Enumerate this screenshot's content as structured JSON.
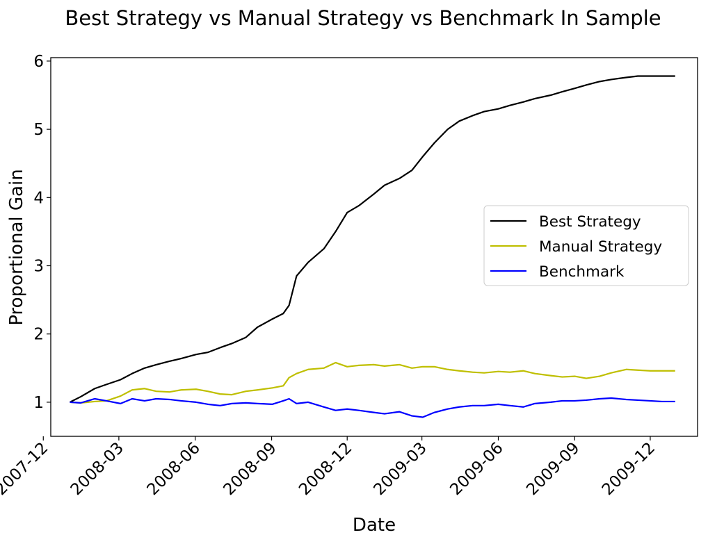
{
  "chart_data": {
    "type": "line",
    "title": "Best Strategy vs Manual Strategy vs Benchmark In Sample",
    "xlabel": "Date",
    "ylabel": "Proportional Gain",
    "x_ticks": [
      "2007-12",
      "2008-03",
      "2008-06",
      "2008-09",
      "2008-12",
      "2009-03",
      "2009-06",
      "2009-09",
      "2009-12"
    ],
    "xlim": [
      "2007-12-10",
      "2010-01-27"
    ],
    "y_ticks": [
      1,
      2,
      3,
      4,
      5,
      6
    ],
    "ylim": [
      0.5,
      6.05
    ],
    "grid": false,
    "legend_position": "center-right",
    "x": [
      "2008-01-02",
      "2008-01-15",
      "2008-02-01",
      "2008-02-15",
      "2008-03-03",
      "2008-03-17",
      "2008-04-01",
      "2008-04-15",
      "2008-05-01",
      "2008-05-15",
      "2008-06-02",
      "2008-06-16",
      "2008-07-01",
      "2008-07-15",
      "2008-08-01",
      "2008-08-15",
      "2008-09-02",
      "2008-09-15",
      "2008-09-22",
      "2008-10-01",
      "2008-10-15",
      "2008-11-03",
      "2008-11-17",
      "2008-12-01",
      "2008-12-15",
      "2009-01-02",
      "2009-01-15",
      "2009-02-02",
      "2009-02-17",
      "2009-03-02",
      "2009-03-16",
      "2009-04-01",
      "2009-04-15",
      "2009-05-01",
      "2009-05-15",
      "2009-06-01",
      "2009-06-15",
      "2009-07-01",
      "2009-07-15",
      "2009-08-03",
      "2009-08-17",
      "2009-09-01",
      "2009-09-15",
      "2009-10-01",
      "2009-10-15",
      "2009-11-02",
      "2009-11-16",
      "2009-12-01",
      "2009-12-15",
      "2009-12-31"
    ],
    "series": [
      {
        "name": "Best Strategy",
        "color": "#000000",
        "values": [
          1.0,
          1.08,
          1.2,
          1.26,
          1.33,
          1.42,
          1.5,
          1.55,
          1.6,
          1.64,
          1.7,
          1.73,
          1.8,
          1.86,
          1.95,
          2.1,
          2.22,
          2.3,
          2.42,
          2.85,
          3.05,
          3.25,
          3.5,
          3.78,
          3.88,
          4.05,
          4.18,
          4.28,
          4.4,
          4.6,
          4.8,
          5.0,
          5.12,
          5.2,
          5.26,
          5.3,
          5.35,
          5.4,
          5.45,
          5.5,
          5.55,
          5.6,
          5.65,
          5.7,
          5.73,
          5.76,
          5.78,
          5.78,
          5.78,
          5.78
        ]
      },
      {
        "name": "Manual Strategy",
        "color": "#bfbf00",
        "values": [
          1.0,
          0.99,
          1.01,
          1.02,
          1.09,
          1.18,
          1.2,
          1.16,
          1.15,
          1.18,
          1.19,
          1.16,
          1.12,
          1.11,
          1.16,
          1.18,
          1.21,
          1.24,
          1.36,
          1.42,
          1.48,
          1.5,
          1.58,
          1.52,
          1.54,
          1.55,
          1.53,
          1.55,
          1.5,
          1.52,
          1.52,
          1.48,
          1.46,
          1.44,
          1.43,
          1.45,
          1.44,
          1.46,
          1.42,
          1.39,
          1.37,
          1.38,
          1.35,
          1.38,
          1.43,
          1.48,
          1.47,
          1.46,
          1.46,
          1.46
        ]
      },
      {
        "name": "Benchmark",
        "color": "#0000ff",
        "values": [
          1.0,
          0.99,
          1.05,
          1.02,
          0.98,
          1.05,
          1.02,
          1.05,
          1.04,
          1.02,
          1.0,
          0.97,
          0.95,
          0.98,
          0.99,
          0.98,
          0.97,
          1.02,
          1.05,
          0.98,
          1.0,
          0.93,
          0.88,
          0.9,
          0.88,
          0.85,
          0.83,
          0.86,
          0.8,
          0.78,
          0.85,
          0.9,
          0.93,
          0.95,
          0.95,
          0.97,
          0.95,
          0.93,
          0.98,
          1.0,
          1.02,
          1.02,
          1.03,
          1.05,
          1.06,
          1.04,
          1.03,
          1.02,
          1.01,
          1.01
        ]
      }
    ]
  }
}
